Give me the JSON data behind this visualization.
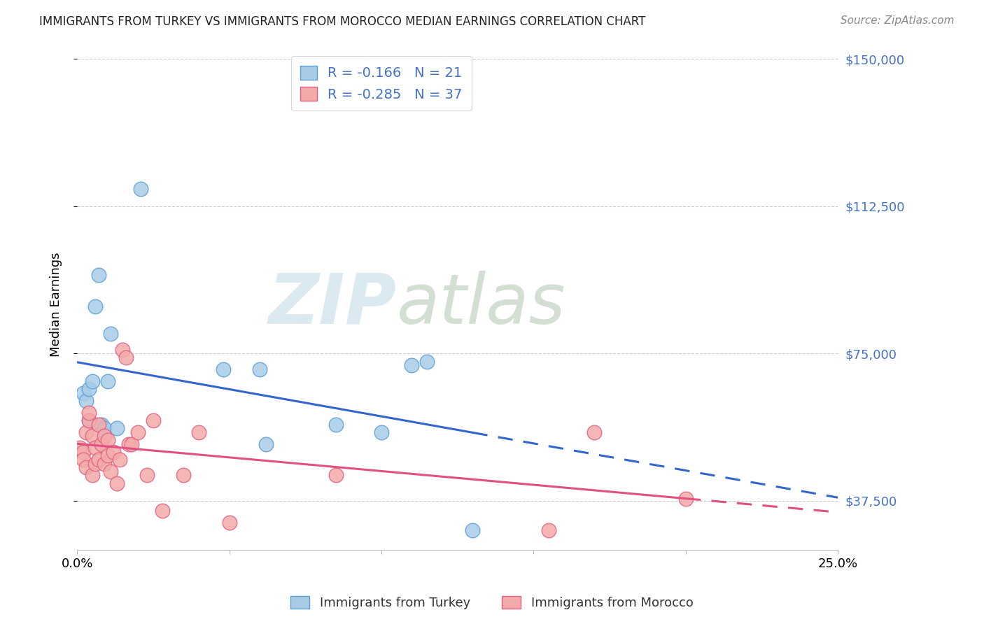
{
  "title": "IMMIGRANTS FROM TURKEY VS IMMIGRANTS FROM MOROCCO MEDIAN EARNINGS CORRELATION CHART",
  "source": "Source: ZipAtlas.com",
  "ylabel": "Median Earnings",
  "xlim": [
    0.0,
    0.25
  ],
  "ylim": [
    25000,
    150000
  ],
  "yticks": [
    37500,
    75000,
    112500,
    150000
  ],
  "ytick_labels": [
    "$37,500",
    "$75,000",
    "$112,500",
    "$150,000"
  ],
  "grid_color": "#cccccc",
  "background_color": "#ffffff",
  "turkey_color": "#a8cce8",
  "turkey_edge_color": "#5a9fd4",
  "morocco_color": "#f4aaaa",
  "morocco_edge_color": "#e06080",
  "turkey_R": -0.166,
  "turkey_N": 21,
  "morocco_R": -0.285,
  "morocco_N": 37,
  "turkey_line_color": "#3366cc",
  "morocco_line_color": "#e05080",
  "turkey_scatter_x": [
    0.002,
    0.003,
    0.004,
    0.004,
    0.005,
    0.006,
    0.007,
    0.008,
    0.009,
    0.01,
    0.011,
    0.013,
    0.021,
    0.048,
    0.06,
    0.062,
    0.085,
    0.11,
    0.115,
    0.13,
    0.1
  ],
  "turkey_scatter_y": [
    65000,
    63000,
    66000,
    58000,
    68000,
    87000,
    95000,
    57000,
    56000,
    68000,
    80000,
    56000,
    117000,
    71000,
    71000,
    52000,
    57000,
    72000,
    73000,
    30000,
    55000
  ],
  "morocco_scatter_x": [
    0.001,
    0.002,
    0.002,
    0.003,
    0.003,
    0.004,
    0.004,
    0.005,
    0.005,
    0.006,
    0.006,
    0.007,
    0.007,
    0.008,
    0.009,
    0.009,
    0.01,
    0.01,
    0.011,
    0.012,
    0.013,
    0.014,
    0.015,
    0.016,
    0.017,
    0.018,
    0.02,
    0.023,
    0.025,
    0.028,
    0.035,
    0.04,
    0.05,
    0.085,
    0.155,
    0.17,
    0.2
  ],
  "morocco_scatter_y": [
    51000,
    50000,
    48000,
    55000,
    46000,
    58000,
    60000,
    54000,
    44000,
    51000,
    47000,
    57000,
    48000,
    52000,
    47000,
    54000,
    49000,
    53000,
    45000,
    50000,
    42000,
    48000,
    76000,
    74000,
    52000,
    52000,
    55000,
    44000,
    58000,
    35000,
    44000,
    55000,
    32000,
    44000,
    30000,
    55000,
    38000
  ],
  "watermark_zip": "ZIP",
  "watermark_atlas": "atlas",
  "legend_label_turkey": "Immigrants from Turkey",
  "legend_label_morocco": "Immigrants from Morocco",
  "legend_R_color": "#4472c4",
  "legend_N_color": "#4472c4"
}
